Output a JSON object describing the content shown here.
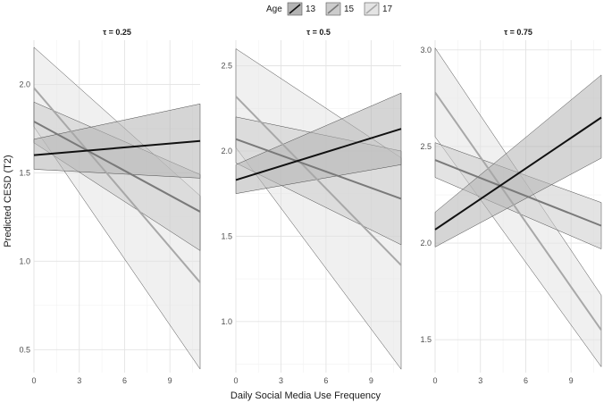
{
  "chart_data": {
    "type": "line",
    "legend_title": "Age",
    "legend_position": "top",
    "xlabel": "Daily Social Media Use Frequency",
    "ylabel": "Predicted CESD (T2)",
    "grid": true,
    "legend": [
      {
        "name": "13",
        "line_color": "#111111",
        "fill_color": "#b3b3b3"
      },
      {
        "name": "15",
        "line_color": "#7a7a7a",
        "fill_color": "#cccccc"
      },
      {
        "name": "17",
        "line_color": "#a8a8a8",
        "fill_color": "#e4e4e4"
      }
    ],
    "panels": [
      {
        "title": "τ = 0.25",
        "xlim": [
          0,
          11
        ],
        "xticks": [
          0,
          3,
          6,
          9
        ],
        "ylim": [
          0.37,
          2.25
        ],
        "yticks": [
          0.5,
          1.0,
          1.5,
          2.0
        ],
        "ytick_labels": [
          "0.5",
          "1.0",
          "1.5",
          "2.0"
        ],
        "series": [
          {
            "name": "13",
            "x": [
              0,
              11
            ],
            "y": [
              1.6,
              1.68
            ],
            "lower": [
              1.52,
              1.47
            ],
            "upper": [
              1.69,
              1.89
            ]
          },
          {
            "name": "15",
            "x": [
              0,
              11
            ],
            "y": [
              1.79,
              1.28
            ],
            "lower": [
              1.67,
              1.06
            ],
            "upper": [
              1.9,
              1.49
            ]
          },
          {
            "name": "17",
            "x": [
              0,
              11
            ],
            "y": [
              1.98,
              0.88
            ],
            "lower": [
              1.76,
              0.39
            ],
            "upper": [
              2.21,
              1.37
            ]
          }
        ]
      },
      {
        "title": "τ = 0.5",
        "xlim": [
          0,
          11
        ],
        "xticks": [
          0,
          3,
          6,
          9
        ],
        "ylim": [
          0.7,
          2.65
        ],
        "yticks": [
          1.0,
          1.5,
          2.0,
          2.5
        ],
        "ytick_labels": [
          "1.0",
          "1.5",
          "2.0",
          "2.5"
        ],
        "series": [
          {
            "name": "13",
            "x": [
              0,
              11
            ],
            "y": [
              1.83,
              2.13
            ],
            "lower": [
              1.75,
              1.92
            ],
            "upper": [
              1.92,
              2.34
            ]
          },
          {
            "name": "15",
            "x": [
              0,
              11
            ],
            "y": [
              2.07,
              1.72
            ],
            "lower": [
              1.93,
              1.45
            ],
            "upper": [
              2.2,
              2.0
            ]
          },
          {
            "name": "17",
            "x": [
              0,
              11
            ],
            "y": [
              2.32,
              1.33
            ],
            "lower": [
              2.02,
              0.72
            ],
            "upper": [
              2.6,
              1.96
            ]
          }
        ]
      },
      {
        "title": "τ = 0.75",
        "xlim": [
          0,
          11
        ],
        "xticks": [
          0,
          3,
          6,
          9
        ],
        "ylim": [
          1.33,
          3.05
        ],
        "yticks": [
          1.5,
          2.0,
          2.5,
          3.0
        ],
        "ytick_labels": [
          "1.5",
          "2.0",
          "2.5",
          "3.0"
        ],
        "series": [
          {
            "name": "13",
            "x": [
              0,
              11
            ],
            "y": [
              2.07,
              2.65
            ],
            "lower": [
              1.98,
              2.44
            ],
            "upper": [
              2.16,
              2.87
            ]
          },
          {
            "name": "15",
            "x": [
              0,
              11
            ],
            "y": [
              2.43,
              2.09
            ],
            "lower": [
              2.34,
              1.97
            ],
            "upper": [
              2.52,
              2.21
            ]
          },
          {
            "name": "17",
            "x": [
              0,
              11
            ],
            "y": [
              2.78,
              1.55
            ],
            "lower": [
              2.55,
              1.36
            ],
            "upper": [
              3.01,
              1.73
            ]
          }
        ]
      }
    ]
  }
}
